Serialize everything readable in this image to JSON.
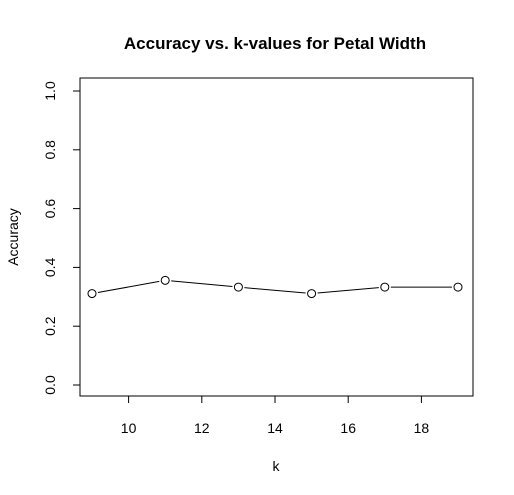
{
  "chart_data": {
    "type": "line",
    "title": "Accuracy vs. k-values for Petal Width",
    "xlabel": "k",
    "ylabel": "Accuracy",
    "x": [
      9,
      11,
      13,
      15,
      17,
      19
    ],
    "series": [
      {
        "values": [
          0.311,
          0.356,
          0.333,
          0.311,
          0.333,
          0.333
        ]
      }
    ],
    "xlim": [
      9,
      19
    ],
    "ylim": [
      0,
      1
    ],
    "xticks": [
      10,
      12,
      14,
      16,
      18
    ],
    "xtick_labels": [
      "10",
      "12",
      "14",
      "16",
      "18"
    ],
    "yticks": [
      0.0,
      0.2,
      0.4,
      0.6,
      0.8,
      1.0
    ],
    "ytick_labels": [
      "0.0",
      "0.2",
      "0.4",
      "0.6",
      "0.8",
      "1.0"
    ],
    "markers": "open-circle",
    "grid": false,
    "legend": "none",
    "colors": {
      "line": "#000000",
      "marker_fill": "#ffffff",
      "background": "#ffffff"
    }
  }
}
